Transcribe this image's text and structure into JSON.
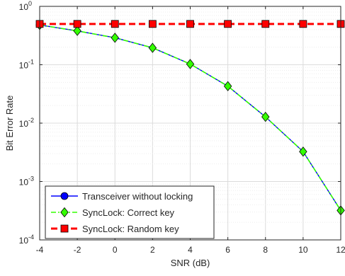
{
  "chart_data": {
    "type": "line",
    "title": "",
    "xlabel": "SNR (dB)",
    "ylabel": "Bit Error Rate",
    "xlim": [
      -4,
      12
    ],
    "ylim": [
      0.0001,
      1
    ],
    "yscale": "log",
    "grid": true,
    "legend_position": "bottom-left",
    "x_ticks": [
      -4,
      -2,
      0,
      2,
      4,
      6,
      8,
      10,
      12
    ],
    "x_tick_labels": [
      "-4",
      "-2",
      "0",
      "2",
      "4",
      "6",
      "8",
      "10",
      "12"
    ],
    "y_ticks": [
      {
        "value": 1,
        "base": "10",
        "exp": "0"
      },
      {
        "value": 0.1,
        "base": "10",
        "exp": "-1"
      },
      {
        "value": 0.01,
        "base": "10",
        "exp": "-2"
      },
      {
        "value": 0.001,
        "base": "10",
        "exp": "-3"
      },
      {
        "value": 0.0001,
        "base": "10",
        "exp": "-4"
      }
    ],
    "x": [
      -4,
      -2,
      0,
      2,
      4,
      6,
      8,
      10,
      12
    ],
    "series": [
      {
        "name": "Transceiver without locking",
        "color": "#0000ff",
        "line_style": "solid",
        "marker": "circle",
        "show_markers": false,
        "values": [
          0.48,
          0.38,
          0.29,
          0.195,
          0.103,
          0.043,
          0.0128,
          0.00325,
          0.00032
        ]
      },
      {
        "name": "SyncLock: Correct key",
        "color": "#33ff00",
        "line_style": "dashdot",
        "marker": "diamond",
        "show_markers": true,
        "values": [
          0.48,
          0.38,
          0.29,
          0.195,
          0.103,
          0.043,
          0.0128,
          0.00325,
          0.00032
        ]
      },
      {
        "name": "SyncLock: Random key",
        "color": "#ff0000",
        "line_style": "dashed",
        "marker": "square",
        "show_markers": true,
        "values": [
          0.5,
          0.5,
          0.5,
          0.5,
          0.5,
          0.5,
          0.5,
          0.5,
          0.5
        ]
      }
    ]
  }
}
